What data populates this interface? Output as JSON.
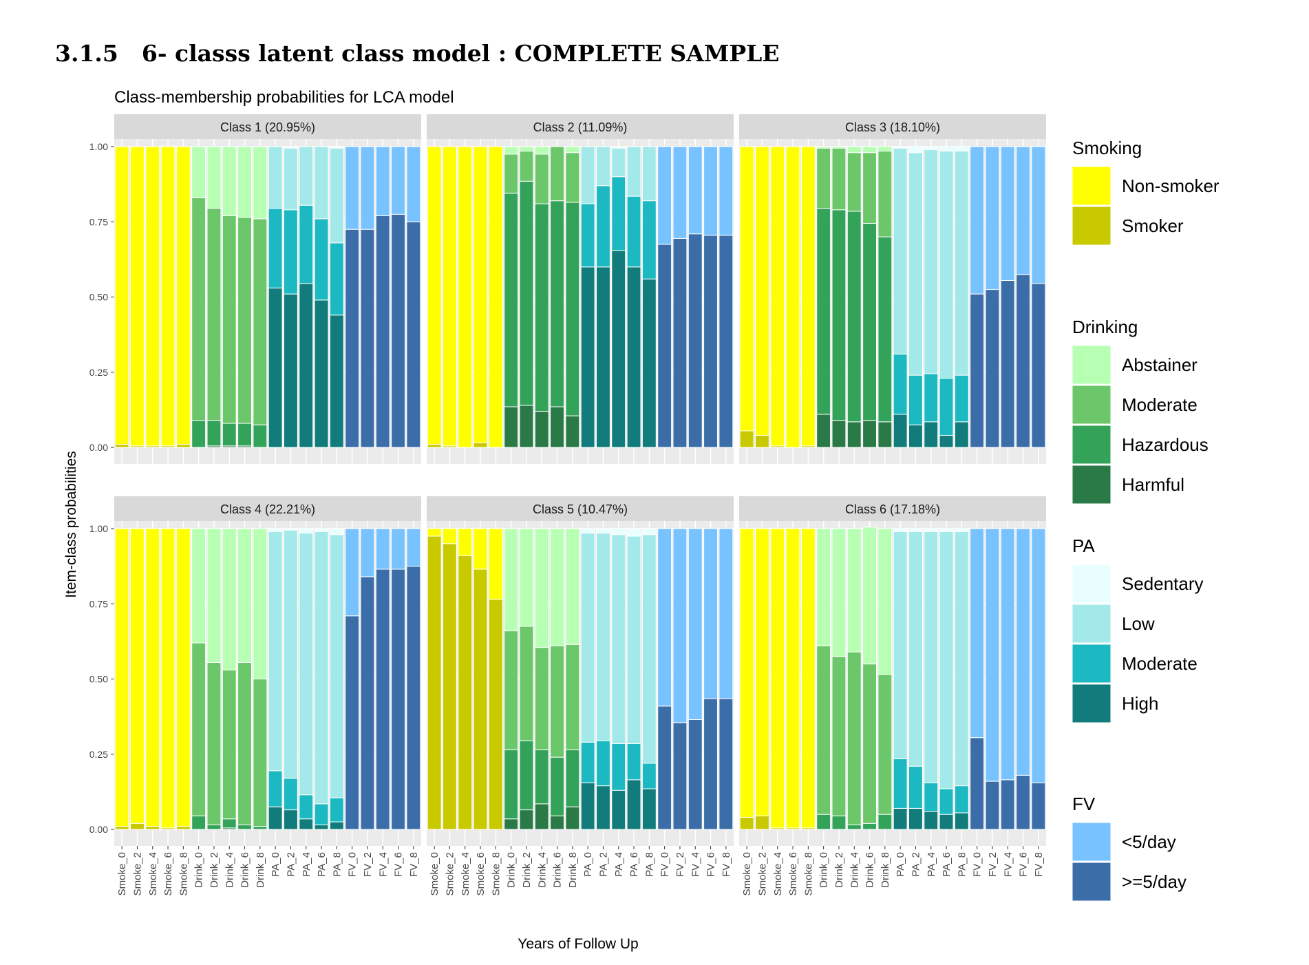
{
  "heading": {
    "number": "3.1.5",
    "text": "6- classs latent class model : COMPLETE SAMPLE"
  },
  "chart_data": {
    "type": "bar",
    "stacked": true,
    "faceted": true,
    "title": "Class-membership probabilities for LCA model",
    "xlabel": "Years of Follow Up",
    "ylabel": "Item-class probabilities",
    "ylim": [
      0,
      1
    ],
    "y_ticks": [
      "0.00",
      "0.25",
      "0.50",
      "0.75",
      "1.00"
    ],
    "grid": true,
    "legend_position": "right",
    "categories": [
      "Smoke_0",
      "Smoke_2",
      "Smoke_4",
      "Smoke_6",
      "Smoke_8",
      "Drink_0",
      "Drink_2",
      "Drink_4",
      "Drink_6",
      "Drink_8",
      "PA_0",
      "PA_2",
      "PA_4",
      "PA_6",
      "PA_8",
      "FV_0",
      "FV_2",
      "FV_4",
      "FV_6",
      "FV_8"
    ],
    "groups": [
      {
        "name": "Smoking",
        "levels": [
          {
            "name": "Non-smoker",
            "color": "#FFFF00"
          },
          {
            "name": "Smoker",
            "color": "#C9C900"
          }
        ]
      },
      {
        "name": "Drinking",
        "levels": [
          {
            "name": "Abstainer",
            "color": "#B6FFB3"
          },
          {
            "name": "Moderate",
            "color": "#6CC66A"
          },
          {
            "name": "Hazardous",
            "color": "#34A35A"
          },
          {
            "name": "Harmful",
            "color": "#297A47"
          }
        ]
      },
      {
        "name": "PA",
        "levels": [
          {
            "name": "Sedentary",
            "color": "#E9FFFF"
          },
          {
            "name": "Low",
            "color": "#A3E9E9"
          },
          {
            "name": "Moderate",
            "color": "#1CB9C3"
          },
          {
            "name": "High",
            "color": "#127B7B"
          }
        ]
      },
      {
        "name": "FV",
        "levels": [
          {
            "name": "<5/day",
            "color": "#78C3FF"
          },
          {
            "name": ">=5/day",
            "color": "#3B6EA8"
          }
        ]
      }
    ],
    "panels": [
      {
        "label": "Class 1 (20.95%)",
        "smoking_smoker": [
          0.01,
          0.005,
          0.005,
          0.005,
          0.01
        ],
        "drinking_abstainer": [
          0.17,
          0.205,
          0.23,
          0.235,
          0.24
        ],
        "drinking_moderate": [
          0.74,
          0.705,
          0.69,
          0.685,
          0.685
        ],
        "drinking_hazardous": [
          0.09,
          0.085,
          0.075,
          0.075,
          0.075
        ],
        "drinking_harmful": [
          0,
          0.005,
          0.005,
          0.005,
          0
        ],
        "pa_sedentary": [
          0,
          0.005,
          0,
          0,
          0.005
        ],
        "pa_low": [
          0.205,
          0.205,
          0.195,
          0.24,
          0.315
        ],
        "pa_moderate": [
          0.265,
          0.28,
          0.26,
          0.27,
          0.24
        ],
        "pa_high": [
          0.53,
          0.51,
          0.545,
          0.49,
          0.44
        ],
        "fv_lt5": [
          0.275,
          0.275,
          0.23,
          0.225,
          0.25
        ],
        "fv_ge5": [
          0.725,
          0.725,
          0.77,
          0.775,
          0.75
        ]
      },
      {
        "label": "Class 2 (11.09%)",
        "smoking_smoker": [
          0.01,
          0.005,
          0,
          0.015,
          0
        ],
        "drinking_abstainer": [
          0.025,
          0.015,
          0.025,
          0,
          0.02
        ],
        "drinking_moderate": [
          0.13,
          0.1,
          0.165,
          0.18,
          0.165
        ],
        "drinking_hazardous": [
          0.71,
          0.745,
          0.69,
          0.685,
          0.71
        ],
        "drinking_harmful": [
          0.135,
          0.14,
          0.12,
          0.135,
          0.105
        ],
        "pa_sedentary": [
          0,
          0,
          0.005,
          0,
          0
        ],
        "pa_low": [
          0.19,
          0.13,
          0.095,
          0.165,
          0.18
        ],
        "pa_moderate": [
          0.21,
          0.27,
          0.245,
          0.235,
          0.26
        ],
        "pa_high": [
          0.6,
          0.6,
          0.655,
          0.6,
          0.56
        ],
        "fv_lt5": [
          0.325,
          0.305,
          0.29,
          0.295,
          0.295
        ],
        "fv_ge5": [
          0.675,
          0.695,
          0.71,
          0.705,
          0.705
        ]
      },
      {
        "label": "Class 3 (18.10%)",
        "smoking_smoker": [
          0.055,
          0.04,
          0.005,
          0,
          0.005
        ],
        "drinking_abstainer": [
          0.005,
          0.005,
          0.02,
          0.02,
          0.015
        ],
        "drinking_moderate": [
          0.2,
          0.205,
          0.195,
          0.235,
          0.285
        ],
        "drinking_hazardous": [
          0.685,
          0.7,
          0.7,
          0.655,
          0.615
        ],
        "drinking_harmful": [
          0.11,
          0.09,
          0.085,
          0.09,
          0.085
        ],
        "pa_sedentary": [
          0.005,
          0.02,
          0.01,
          0.015,
          0.015
        ],
        "pa_low": [
          0.685,
          0.74,
          0.745,
          0.755,
          0.745
        ],
        "pa_moderate": [
          0.2,
          0.165,
          0.16,
          0.19,
          0.155
        ],
        "pa_high": [
          0.11,
          0.075,
          0.085,
          0.04,
          0.085
        ],
        "fv_lt5": [
          0.49,
          0.475,
          0.445,
          0.425,
          0.455
        ],
        "fv_ge5": [
          0.51,
          0.525,
          0.555,
          0.575,
          0.545
        ]
      },
      {
        "label": "Class 4 (22.21%)",
        "smoking_smoker": [
          0.01,
          0.02,
          0.01,
          0.005,
          0.01
        ],
        "drinking_abstainer": [
          0.38,
          0.445,
          0.47,
          0.445,
          0.5
        ],
        "drinking_moderate": [
          0.575,
          0.54,
          0.495,
          0.54,
          0.49
        ],
        "drinking_hazardous": [
          0.045,
          0.015,
          0.03,
          0.015,
          0.01
        ],
        "drinking_harmful": [
          0,
          0,
          0.005,
          0,
          0
        ],
        "pa_sedentary": [
          0.01,
          0.005,
          0.015,
          0.01,
          0.02
        ],
        "pa_low": [
          0.795,
          0.825,
          0.87,
          0.905,
          0.875
        ],
        "pa_moderate": [
          0.12,
          0.105,
          0.08,
          0.07,
          0.08
        ],
        "pa_high": [
          0.075,
          0.065,
          0.035,
          0.015,
          0.025
        ],
        "fv_lt5": [
          0.29,
          0.16,
          0.135,
          0.135,
          0.125
        ],
        "fv_ge5": [
          0.71,
          0.84,
          0.865,
          0.865,
          0.875
        ]
      },
      {
        "label": "Class 5 (10.47%)",
        "smoking_smoker": [
          0.975,
          0.95,
          0.91,
          0.865,
          0.765
        ],
        "drinking_abstainer": [
          0.34,
          0.325,
          0.395,
          0.39,
          0.385
        ],
        "drinking_moderate": [
          0.395,
          0.38,
          0.34,
          0.37,
          0.35
        ],
        "drinking_hazardous": [
          0.23,
          0.23,
          0.18,
          0.195,
          0.19
        ],
        "drinking_harmful": [
          0.035,
          0.065,
          0.085,
          0.045,
          0.075
        ],
        "pa_sedentary": [
          0.015,
          0.015,
          0.02,
          0.025,
          0.02
        ],
        "pa_low": [
          0.695,
          0.69,
          0.695,
          0.69,
          0.76
        ],
        "pa_moderate": [
          0.135,
          0.15,
          0.155,
          0.12,
          0.085
        ],
        "pa_high": [
          0.155,
          0.145,
          0.13,
          0.165,
          0.135
        ],
        "fv_lt5": [
          0.59,
          0.645,
          0.635,
          0.565,
          0.565
        ],
        "fv_ge5": [
          0.41,
          0.355,
          0.365,
          0.435,
          0.435
        ]
      },
      {
        "label": "Class 6 (17.18%)",
        "smoking_smoker": [
          0.04,
          0.045,
          0.005,
          0.005,
          0.005
        ],
        "drinking_abstainer": [
          0.39,
          0.425,
          0.41,
          0.455,
          0.485
        ],
        "drinking_moderate": [
          0.56,
          0.53,
          0.575,
          0.53,
          0.465
        ],
        "drinking_hazardous": [
          0.05,
          0.045,
          0.015,
          0.02,
          0.05
        ],
        "drinking_harmful": [
          0,
          0,
          0,
          0,
          0
        ],
        "pa_sedentary": [
          0.01,
          0.01,
          0.01,
          0.01,
          0.01
        ],
        "pa_low": [
          0.755,
          0.78,
          0.835,
          0.855,
          0.845
        ],
        "pa_moderate": [
          0.165,
          0.14,
          0.095,
          0.085,
          0.09
        ],
        "pa_high": [
          0.07,
          0.07,
          0.06,
          0.05,
          0.055
        ],
        "fv_lt5": [
          0.695,
          0.84,
          0.835,
          0.82,
          0.845
        ],
        "fv_ge5": [
          0.305,
          0.16,
          0.165,
          0.18,
          0.155
        ]
      }
    ]
  }
}
